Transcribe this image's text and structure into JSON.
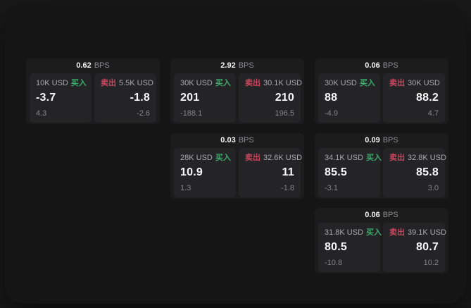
{
  "colors": {
    "buy_green": "#3cab6c",
    "sell_red": "#ca465e",
    "card_bg": "#1c1c1d",
    "panel_bg": "#242426",
    "app_bg": "#151516"
  },
  "cards": [
    {
      "bps_value": "0.62",
      "bps_unit": "BPS",
      "buy": {
        "size": "10K USD",
        "side_label": "买入",
        "value": "-3.7",
        "sub": "4.3"
      },
      "sell": {
        "side_label": "卖出",
        "size": "5.5K USD",
        "value": "-1.8",
        "sub": "-2.6"
      }
    },
    {
      "bps_value": "2.92",
      "bps_unit": "BPS",
      "buy": {
        "size": "30K USD",
        "side_label": "买入",
        "value": "201",
        "sub": "-188.1"
      },
      "sell": {
        "side_label": "卖出",
        "size": "30.1K USD",
        "value": "210",
        "sub": "196.5"
      }
    },
    {
      "bps_value": "0.06",
      "bps_unit": "BPS",
      "buy": {
        "size": "30K USD",
        "side_label": "买入",
        "value": "88",
        "sub": "-4.9"
      },
      "sell": {
        "side_label": "卖出",
        "size": "30K USD",
        "value": "88.2",
        "sub": "4.7"
      }
    },
    {
      "bps_value": "0.03",
      "bps_unit": "BPS",
      "buy": {
        "size": "28K USD",
        "side_label": "买入",
        "value": "10.9",
        "sub": "1.3"
      },
      "sell": {
        "side_label": "卖出",
        "size": "32.6K USD",
        "value": "11",
        "sub": "-1.8"
      }
    },
    {
      "bps_value": "0.09",
      "bps_unit": "BPS",
      "buy": {
        "size": "34.1K USD",
        "side_label": "买入",
        "value": "85.5",
        "sub": "-3.1"
      },
      "sell": {
        "side_label": "卖出",
        "size": "32.8K USD",
        "value": "85.8",
        "sub": "3.0"
      }
    },
    {
      "bps_value": "0.06",
      "bps_unit": "BPS",
      "buy": {
        "size": "31.8K USD",
        "side_label": "买入",
        "value": "80.5",
        "sub": "-10.8"
      },
      "sell": {
        "side_label": "卖出",
        "size": "39.1K USD",
        "value": "80.7",
        "sub": "10.2"
      }
    }
  ]
}
